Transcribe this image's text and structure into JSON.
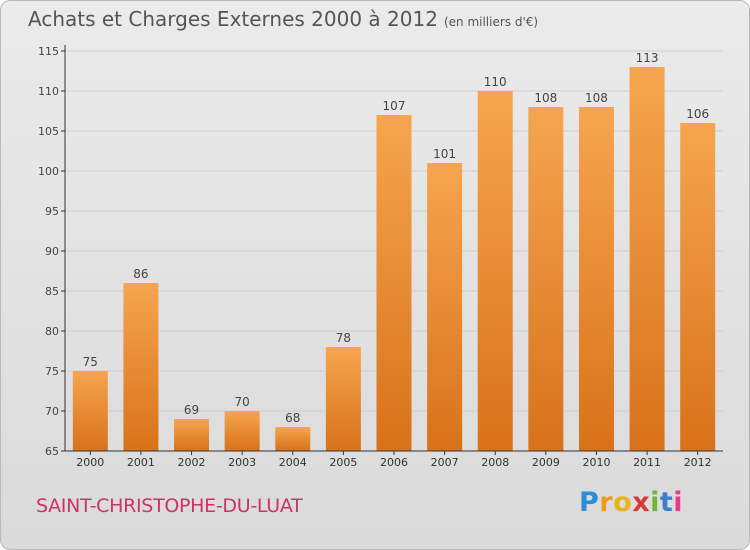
{
  "header": {
    "title": "Achats et Charges Externes 2000 à 2012",
    "subtitle": "(en milliers d'€)"
  },
  "footer": {
    "commune": "SAINT-CHRISTOPHE-DU-LUAT",
    "logo_letters": [
      "P",
      "r",
      "o",
      "x",
      "i",
      "t",
      "i"
    ],
    "logo_colors": [
      "#2a8fd4",
      "#f09a1a",
      "#e8b41c",
      "#d83a3a",
      "#6db63a",
      "#3a7fcf",
      "#e83a8a"
    ]
  },
  "colors": {
    "bar": "#f28a2a",
    "bar_top": "#f6a54f",
    "bar_bottom": "#d8721a",
    "grid": "#cfcfcf",
    "axis": "#333333"
  },
  "chart_data": {
    "type": "bar",
    "categories": [
      "2000",
      "2001",
      "2002",
      "2003",
      "2004",
      "2005",
      "2006",
      "2007",
      "2008",
      "2009",
      "2010",
      "2011",
      "2012"
    ],
    "values": [
      75,
      86,
      69,
      70,
      68,
      78,
      107,
      101,
      110,
      108,
      108,
      113,
      106
    ],
    "data_labels": [
      "75",
      "86",
      "69",
      "70",
      "68",
      "78",
      "107",
      "101",
      "110",
      "108",
      "108",
      "113",
      "106"
    ],
    "yticks": [
      "65",
      "70",
      "75",
      "80",
      "85",
      "90",
      "95",
      "100",
      "105",
      "110",
      "115"
    ],
    "ylim": [
      65,
      115
    ],
    "grid": true
  }
}
